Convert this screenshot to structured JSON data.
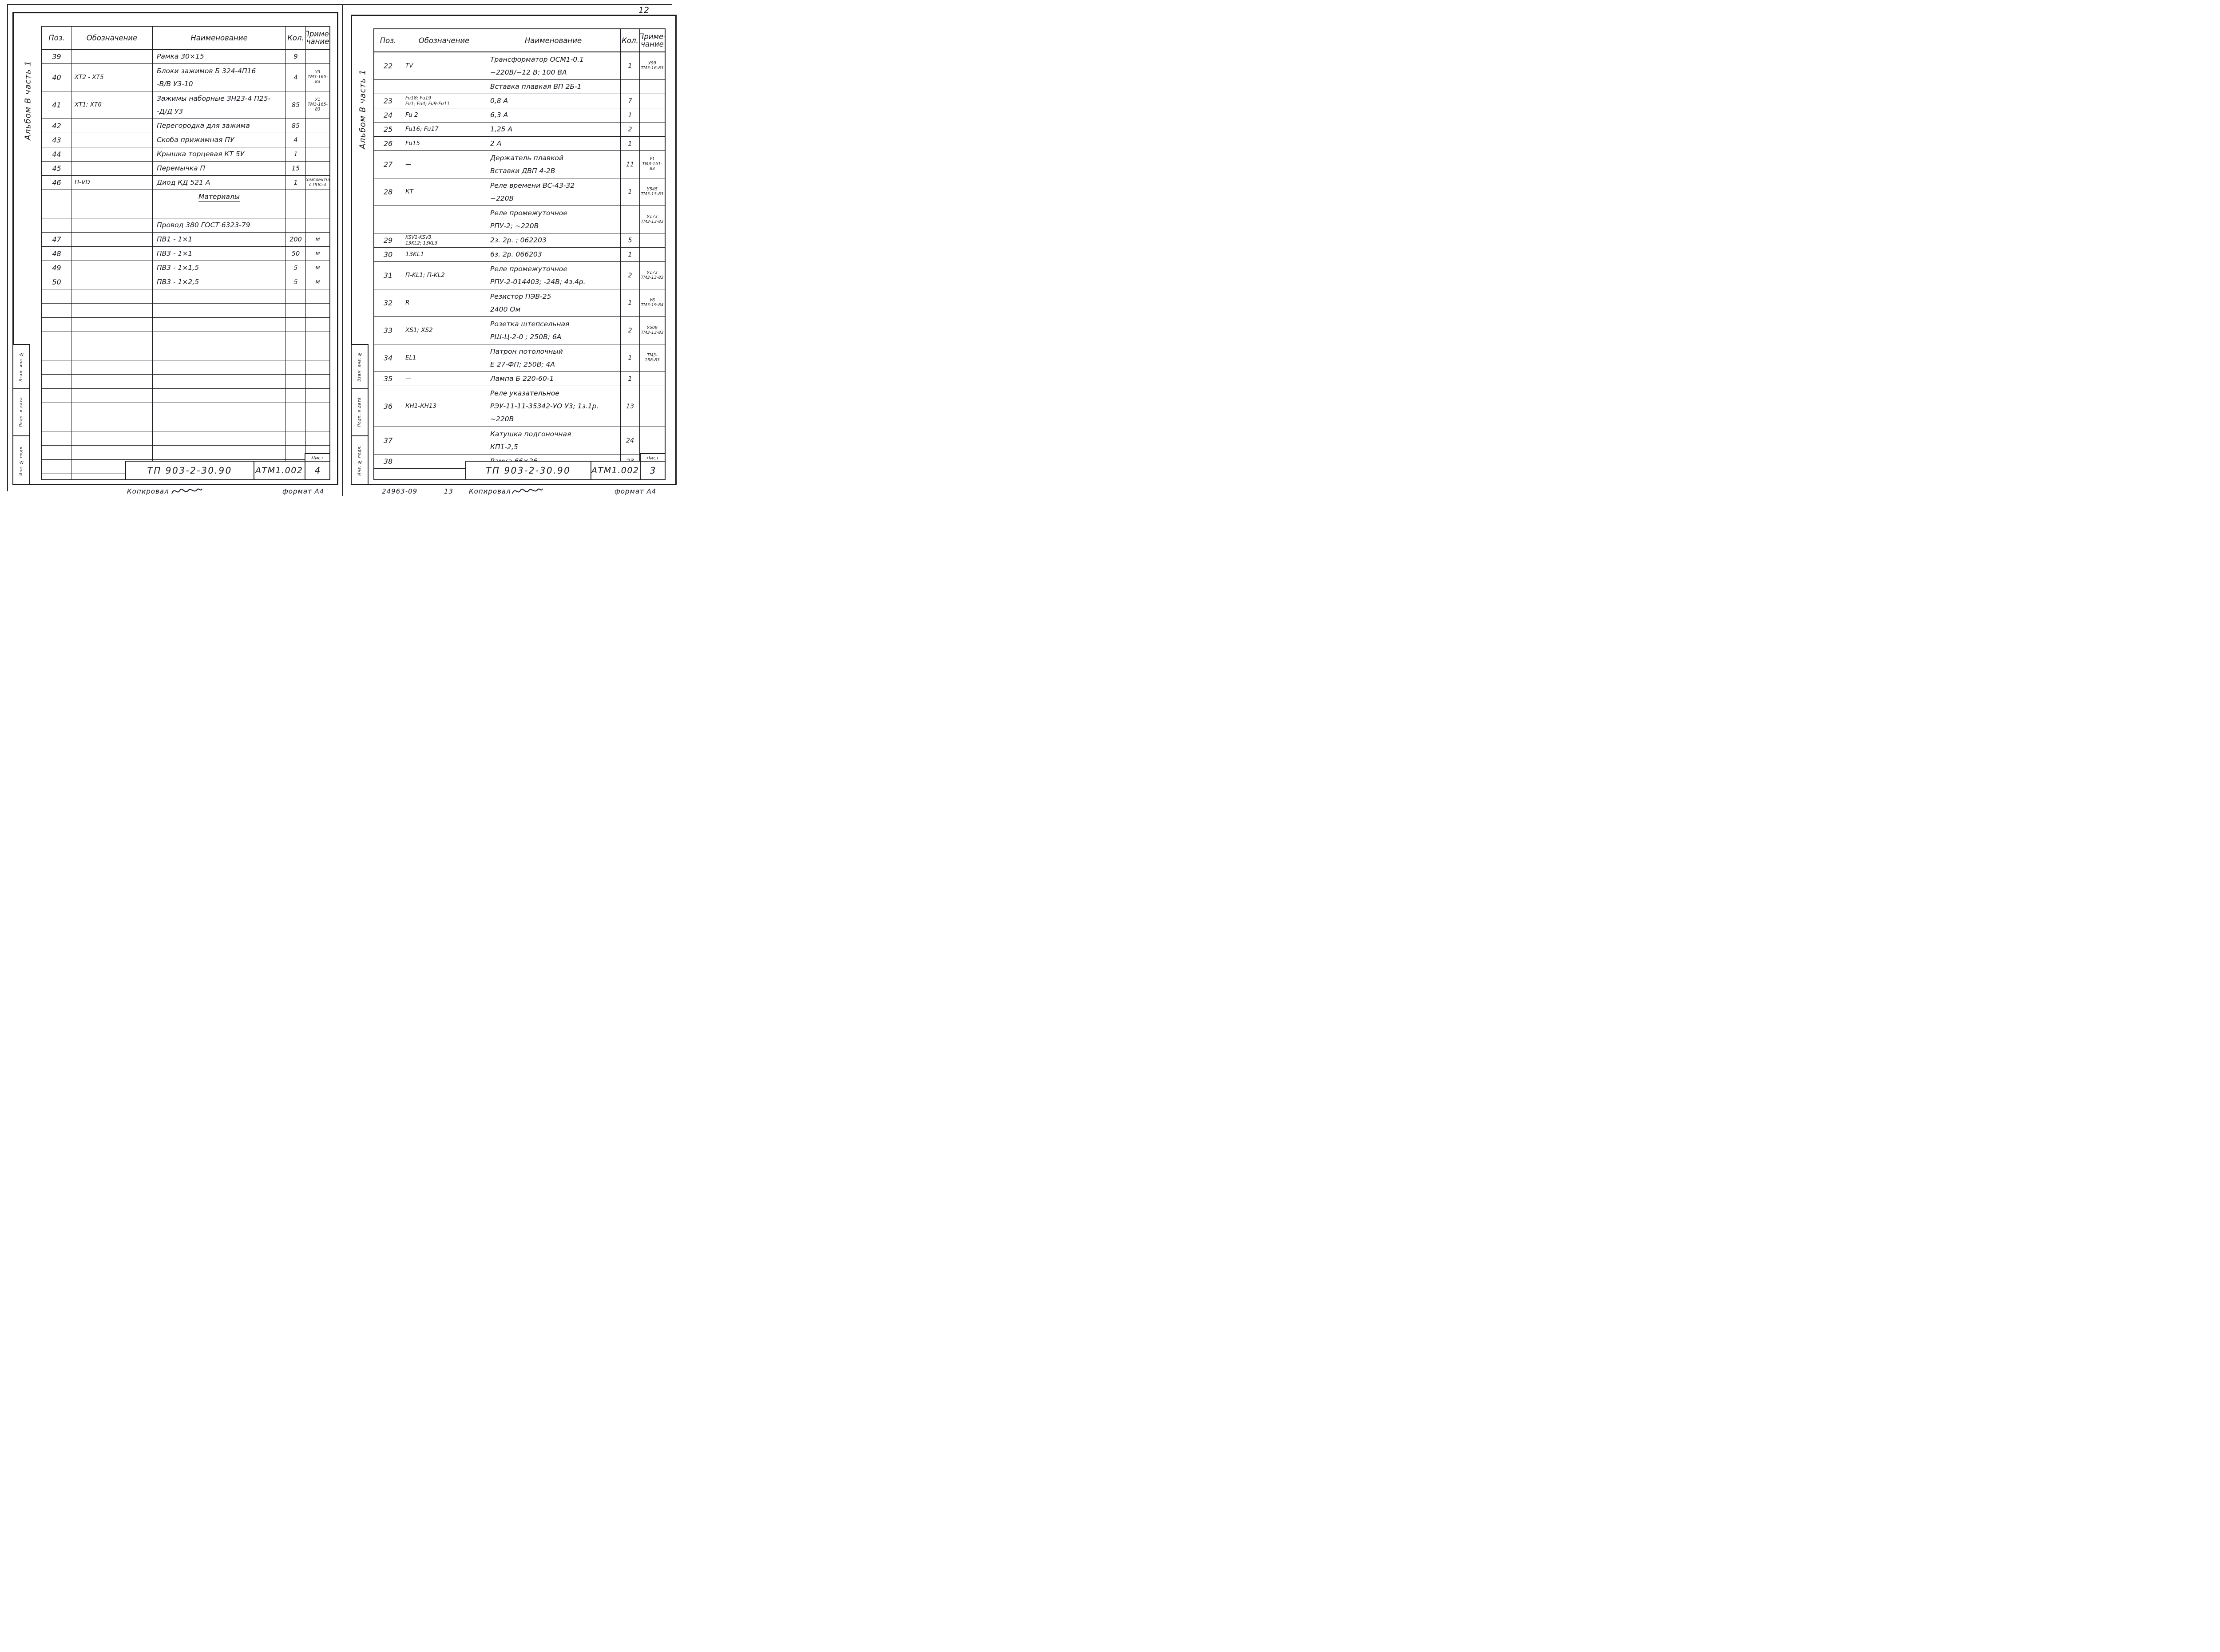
{
  "page_number": "12",
  "pages": [
    {
      "album_label": "Альбом В часть 1",
      "stamps": [
        "Взам. инв. №",
        "Подп. и дата",
        "Инв. № подл."
      ],
      "header": {
        "pos": "Поз.",
        "des": "Обозначение",
        "name": "Наименование",
        "qty": "Кол.",
        "note": "Приме-\nчание"
      },
      "rows": [
        {
          "pos": "39",
          "des": "",
          "name": "Рамка 30×15",
          "qty": "9",
          "note": ""
        },
        {
          "pos": "40",
          "des": "ХТ2 - ХТ5",
          "name": "Блоки зажимов  Б 324-4П16\n-В/В  У3-10",
          "qty": "4",
          "note": "У3\nТМ3-165-83"
        },
        {
          "pos": "41",
          "des": "ХТ1;  ХТ6",
          "name": "Зажимы наборные ЗН23-4 П25-\n-Д/Д  У3",
          "qty": "85",
          "note": "У1\nТМ3-165-83"
        },
        {
          "pos": "42",
          "des": "",
          "name": "Перегородка для зажима",
          "qty": "85",
          "note": ""
        },
        {
          "pos": "43",
          "des": "",
          "name": "Скоба прижимная  ПУ",
          "qty": "4",
          "note": ""
        },
        {
          "pos": "44",
          "des": "",
          "name": "Крышка торцевая  КТ 5У",
          "qty": "1",
          "note": ""
        },
        {
          "pos": "45",
          "des": "",
          "name": "Перемычка П",
          "qty": "15",
          "note": ""
        },
        {
          "pos": "46",
          "des": "П-VD",
          "name": "Диод КД 521 А",
          "qty": "1",
          "note": "Комплектно\nс ППС-3"
        },
        {
          "pos": "",
          "des": "",
          "name": "Материалы",
          "qty": "",
          "note": "",
          "cls": "section"
        },
        {
          "pos": "",
          "des": "",
          "name": "",
          "qty": "",
          "note": ""
        },
        {
          "pos": "",
          "des": "",
          "name": "Провод  380 ГОСТ 6323-79",
          "qty": "",
          "note": ""
        },
        {
          "pos": "47",
          "des": "",
          "name": "ПВ1 - 1×1",
          "qty": "200",
          "note": "м"
        },
        {
          "pos": "48",
          "des": "",
          "name": "ПВ3 - 1×1",
          "qty": "50",
          "note": "м"
        },
        {
          "pos": "49",
          "des": "",
          "name": "ПВ3 - 1×1,5",
          "qty": "5",
          "note": "м"
        },
        {
          "pos": "50",
          "des": "",
          "name": "ПВ3 - 1×2,5",
          "qty": "5",
          "note": "м"
        }
      ],
      "title_block": {
        "doc": "ТП 903-2-30.90",
        "code": "АТМ1.002",
        "sheet_label": "Лист",
        "sheet": "4"
      },
      "footer": {
        "copied": "Копировал",
        "format": "формат А4"
      }
    },
    {
      "album_label": "Альбом В часть 1",
      "stamps": [
        "Взам. инв. №",
        "Подп. и дата",
        "Инв. № подл."
      ],
      "header": {
        "pos": "Поз.",
        "des": "Обозначение",
        "name": "Наименование",
        "qty": "Кол.",
        "note": "Приме-\nчание"
      },
      "rows": [
        {
          "pos": "22",
          "des": "TV",
          "name": "Трансформатор ОСМ1-0.1\n~220В/~12 В;  100 ВА",
          "qty": "1",
          "note": "У99\nТМ3-16-83"
        },
        {
          "pos": "",
          "des": "",
          "name": "Вставка плавкая ВП 2Б-1",
          "qty": "",
          "note": ""
        },
        {
          "pos": "23",
          "des": "Fu18; Fu19\nFu1; Fu4; Fu9-Fu11",
          "name": "0,8 А",
          "qty": "7",
          "note": ""
        },
        {
          "pos": "24",
          "des": "Fu 2",
          "name": "6,3 А",
          "qty": "1",
          "note": ""
        },
        {
          "pos": "25",
          "des": "Fu16;  Fu17",
          "name": "1,25 А",
          "qty": "2",
          "note": ""
        },
        {
          "pos": "26",
          "des": "Fu15",
          "name": "2 А",
          "qty": "1",
          "note": ""
        },
        {
          "pos": "27",
          "des": "—",
          "name": "Держатель плавкой\nВставки   ДВП 4-2В",
          "qty": "11",
          "note": "У1\nТМ3-151-83"
        },
        {
          "pos": "28",
          "des": "КТ",
          "name": "Реле времени ВС-43-32\n~220В",
          "qty": "1",
          "note": "У545\nТМ3-13-83"
        },
        {
          "pos": "",
          "des": "",
          "name": "Реле  промежуточное\nРПУ-2;    ~220В",
          "qty": "",
          "note": "У173\nТМ3-13-83"
        },
        {
          "pos": "29",
          "des": "KSV1-KSV3\n13KL2; 13KL3",
          "name": "2з. 2р. ;  062203",
          "qty": "5",
          "note": ""
        },
        {
          "pos": "30",
          "des": "13KL1",
          "name": "6з. 2р.  066203",
          "qty": "1",
          "note": ""
        },
        {
          "pos": "31",
          "des": "П-KL1;  П-KL2",
          "name": "Реле промежуточное\nРПУ-2-014403; -24В; 4з.4р.",
          "qty": "2",
          "note": "У173\nТМ3-13-83"
        },
        {
          "pos": "32",
          "des": "R",
          "name": "Резистор  ПЭВ-25\n2400 Ом",
          "qty": "1",
          "note": "У6\nТМ3-19-84"
        },
        {
          "pos": "33",
          "des": "XS1; XS2",
          "name": "Розетка  штепсельная\nРШ-Ц-2-0 ;  250В;  6А",
          "qty": "2",
          "note": "У509\nТМ3-13-83"
        },
        {
          "pos": "34",
          "des": "EL1",
          "name": "Патрон потолочный\nЕ 27-ФП;   250В;  4А",
          "qty": "1",
          "note": "ТМ3-\n158-83"
        },
        {
          "pos": "35",
          "des": "—",
          "name": "Лампа  Б 220-60-1",
          "qty": "1",
          "note": ""
        },
        {
          "pos": "36",
          "des": "КН1-КН13",
          "name": "Реле указательное\nРЭУ-11-11-35342-УО У3; 1з.1р.\n~220В",
          "qty": "13",
          "note": ""
        },
        {
          "pos": "37",
          "des": "",
          "name": "Катушка подгоночная\nКП1-2,5",
          "qty": "24",
          "note": ""
        },
        {
          "pos": "38",
          "des": "",
          "name": "Рамка  66×26",
          "qty": "23",
          "note": ""
        }
      ],
      "title_block": {
        "doc": "ТП 903-2-30.90",
        "code": "АТМ1.002",
        "sheet_label": "Лист",
        "sheet": "3"
      },
      "footer": {
        "stamp_code": "24963-09",
        "stamp_num": "13",
        "copied": "Копировал",
        "format": "формат А4"
      }
    }
  ]
}
